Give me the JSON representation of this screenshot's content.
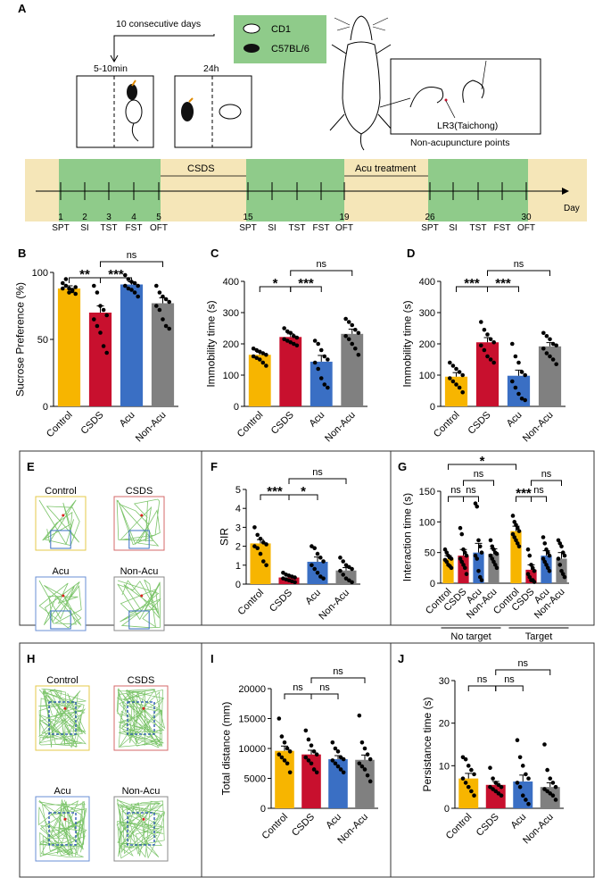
{
  "panel_letters": {
    "A": "A",
    "B": "B",
    "C": "C",
    "D": "D",
    "E": "E",
    "F": "F",
    "G": "G",
    "H": "H",
    "I": "I",
    "J": "J"
  },
  "colors": {
    "control": "#f7b500",
    "csds": "#c8102e",
    "acu": "#3a6fc4",
    "nonacu": "#808080",
    "green": "#8fcb8a",
    "beige": "#f5e6b8"
  },
  "schematic": {
    "days_label": "10 consecutive days",
    "time1": "5-10min",
    "time2": "24h",
    "legend_cd1": "CD1",
    "legend_c57": "C57BL/6",
    "acupoint_label": "LR3(Taichong)",
    "nonacu_label": "Non-acupuncture points"
  },
  "timeline": {
    "csds_label": "CSDS",
    "acu_label": "Acu treatment",
    "day_axis": "Day",
    "day_numbers": [
      "1",
      "2",
      "3",
      "4",
      "5",
      "15",
      "19",
      "26",
      "30"
    ],
    "tests": [
      "SPT",
      "SI",
      "TST",
      "FST",
      "OFT",
      "SPT",
      "SI",
      "TST",
      "FST",
      "OFT",
      "SPT",
      "SI",
      "TST",
      "FST",
      "OFT"
    ]
  },
  "maps_E": [
    "Control",
    "CSDS",
    "Acu",
    "Non-Acu"
  ],
  "maps_H": [
    "Control",
    "CSDS",
    "Acu",
    "Non-Acu"
  ],
  "chart_data": [
    {
      "id": "B",
      "type": "bar",
      "categories": [
        "Control",
        "CSDS",
        "Acu",
        "Non-Acu"
      ],
      "values": [
        88,
        70,
        91,
        77
      ],
      "errors": [
        2,
        5,
        2,
        4
      ],
      "ylabel": "Sucrose Preference (%)",
      "ylim": [
        0,
        100
      ],
      "yticks": [
        "0",
        "50",
        "100"
      ],
      "points": [
        [
          92,
          90,
          88,
          86,
          84,
          88,
          95,
          85,
          87,
          89
        ],
        [
          90,
          85,
          75,
          72,
          68,
          65,
          60,
          55,
          45,
          40
        ],
        [
          98,
          95,
          93,
          92,
          90,
          90,
          88,
          87,
          85,
          82
        ],
        [
          90,
          85,
          82,
          80,
          78,
          75,
          72,
          65,
          60,
          58
        ]
      ],
      "sig": [
        {
          "a": 0,
          "b": 1,
          "label": "**",
          "level": 1
        },
        {
          "a": 1,
          "b": 2,
          "label": "***",
          "level": 1
        },
        {
          "a": 1,
          "b": 3,
          "label": "ns",
          "level": 2
        }
      ]
    },
    {
      "id": "C",
      "type": "bar",
      "categories": [
        "Control",
        "CSDS",
        "Acu",
        "Non-Acu"
      ],
      "values": [
        165,
        222,
        143,
        232
      ],
      "errors": [
        8,
        10,
        20,
        15
      ],
      "ylabel": "Immobility time (s)",
      "ylim": [
        0,
        400
      ],
      "yticks": [
        "0",
        "100",
        "200",
        "300",
        "400"
      ],
      "points": [
        [
          185,
          180,
          175,
          170,
          165,
          160,
          155,
          150,
          140,
          130
        ],
        [
          250,
          240,
          235,
          225,
          220,
          215,
          210,
          205,
          200,
          195
        ],
        [
          210,
          200,
          180,
          160,
          150,
          140,
          120,
          90,
          70,
          60
        ],
        [
          280,
          270,
          260,
          245,
          235,
          225,
          215,
          200,
          185,
          165
        ]
      ],
      "sig": [
        {
          "a": 0,
          "b": 1,
          "label": "*",
          "level": 1
        },
        {
          "a": 1,
          "b": 2,
          "label": "***",
          "level": 1
        },
        {
          "a": 1,
          "b": 3,
          "label": "ns",
          "level": 2
        }
      ]
    },
    {
      "id": "D",
      "type": "bar",
      "categories": [
        "Control",
        "CSDS",
        "Acu",
        "Non-Acu"
      ],
      "values": [
        95,
        205,
        98,
        192
      ],
      "errors": [
        13,
        15,
        18,
        12
      ],
      "ylabel": "Immobility time (s)",
      "ylim": [
        0,
        400
      ],
      "yticks": [
        "0",
        "100",
        "200",
        "300",
        "400"
      ],
      "points": [
        [
          140,
          130,
          120,
          110,
          100,
          90,
          80,
          70,
          60,
          45
        ],
        [
          270,
          245,
          230,
          215,
          205,
          195,
          180,
          160,
          150,
          140
        ],
        [
          200,
          160,
          140,
          110,
          100,
          80,
          60,
          40,
          25,
          20
        ],
        [
          235,
          225,
          215,
          200,
          195,
          185,
          170,
          160,
          150,
          135
        ]
      ],
      "sig": [
        {
          "a": 0,
          "b": 1,
          "label": "***",
          "level": 1
        },
        {
          "a": 1,
          "b": 2,
          "label": "***",
          "level": 1
        },
        {
          "a": 1,
          "b": 3,
          "label": "ns",
          "level": 2
        }
      ]
    },
    {
      "id": "F",
      "type": "bar",
      "categories": [
        "Control",
        "CSDS",
        "Acu",
        "Non-Acu"
      ],
      "values": [
        2.15,
        0.35,
        1.18,
        0.72
      ],
      "errors": [
        0.2,
        0.08,
        0.25,
        0.15
      ],
      "ylabel": "SIR",
      "ylim": [
        0,
        5
      ],
      "yticks": [
        "0",
        "1",
        "2",
        "3",
        "4",
        "5"
      ],
      "points": [
        [
          3.0,
          2.6,
          2.4,
          2.2,
          2.1,
          2.0,
          1.9,
          1.6,
          1.2,
          1.0
        ],
        [
          0.6,
          0.5,
          0.45,
          0.4,
          0.35,
          0.3,
          0.25,
          0.2,
          0.15,
          0.1
        ],
        [
          2.0,
          1.9,
          1.6,
          1.4,
          1.2,
          1.0,
          0.8,
          0.6,
          0.4,
          0.3
        ],
        [
          1.4,
          1.2,
          1.0,
          0.9,
          0.8,
          0.7,
          0.5,
          0.3,
          0.2,
          0.1
        ]
      ],
      "sig": [
        {
          "a": 0,
          "b": 1,
          "label": "***",
          "level": 1
        },
        {
          "a": 1,
          "b": 2,
          "label": "*",
          "level": 1
        },
        {
          "a": 1,
          "b": 3,
          "label": "ns",
          "level": 2
        }
      ]
    },
    {
      "id": "G",
      "type": "bar",
      "categories": [
        "Control",
        "CSDS",
        "Acu",
        "Non-Acu",
        "Control",
        "CSDS",
        "Acu",
        "Non-Acu"
      ],
      "groups": [
        "No target",
        "Target"
      ],
      "values": [
        40,
        45,
        50,
        48,
        85,
        22,
        45,
        40
      ],
      "errors": [
        5,
        10,
        15,
        8,
        8,
        8,
        8,
        10
      ],
      "ylabel": "Interaction time (s)",
      "ylim": [
        0,
        150
      ],
      "yticks": [
        "0",
        "50",
        "100",
        "150"
      ],
      "points": [
        [
          55,
          50,
          45,
          42,
          40,
          38,
          35,
          30,
          28,
          25
        ],
        [
          90,
          80,
          55,
          50,
          45,
          40,
          35,
          30,
          25,
          15
        ],
        [
          130,
          125,
          70,
          60,
          50,
          45,
          40,
          20,
          10,
          5
        ],
        [
          70,
          60,
          55,
          50,
          48,
          45,
          40,
          35,
          30,
          25
        ],
        [
          110,
          100,
          95,
          90,
          85,
          80,
          75,
          70,
          65,
          60
        ],
        [
          55,
          45,
          30,
          25,
          20,
          15,
          10,
          5,
          5,
          2
        ],
        [
          75,
          65,
          55,
          50,
          45,
          40,
          35,
          30,
          25,
          20
        ],
        [
          70,
          65,
          60,
          50,
          45,
          40,
          30,
          20,
          15,
          10
        ]
      ],
      "sig": [
        {
          "a": 0,
          "b": 1,
          "label": "ns",
          "level": 1
        },
        {
          "a": 1,
          "b": 2,
          "label": "ns",
          "level": 1
        },
        {
          "a": 1,
          "b": 3,
          "label": "ns",
          "level": 2
        },
        {
          "a": 4,
          "b": 5,
          "label": "***",
          "level": 1
        },
        {
          "a": 5,
          "b": 6,
          "label": "ns",
          "level": 1
        },
        {
          "a": 5,
          "b": 7,
          "label": "ns",
          "level": 2
        },
        {
          "a": 0,
          "b": 4,
          "label": "*",
          "level": 3
        }
      ]
    },
    {
      "id": "I",
      "type": "bar",
      "categories": [
        "Control",
        "CSDS",
        "Acu",
        "Non-Acu"
      ],
      "values": [
        9600,
        9000,
        8200,
        8100
      ],
      "errors": [
        800,
        700,
        600,
        800
      ],
      "ylabel": "Total distance (mm)",
      "ylim": [
        0,
        20000
      ],
      "yticks": [
        "0",
        "5000",
        "10000",
        "15000",
        "20000"
      ],
      "points": [
        [
          15000,
          12000,
          11000,
          10000,
          9500,
          9000,
          8500,
          8000,
          7500,
          6000
        ],
        [
          13000,
          11500,
          10500,
          9500,
          9000,
          8500,
          8000,
          7500,
          6500,
          6000
        ],
        [
          11000,
          10000,
          9500,
          8500,
          8200,
          8000,
          7500,
          7000,
          6500,
          6000
        ],
        [
          15500,
          11000,
          10000,
          9000,
          8200,
          7500,
          7000,
          6500,
          5500,
          4500
        ]
      ],
      "sig": [
        {
          "a": 0,
          "b": 1,
          "label": "ns",
          "level": 1
        },
        {
          "a": 1,
          "b": 2,
          "label": "ns",
          "level": 1
        },
        {
          "a": 1,
          "b": 3,
          "label": "ns",
          "level": 2
        }
      ]
    },
    {
      "id": "J",
      "type": "bar",
      "categories": [
        "Control",
        "CSDS",
        "Acu",
        "Non-Acu"
      ],
      "values": [
        7.0,
        5.5,
        6.3,
        5.0
      ],
      "errors": [
        1.2,
        0.8,
        1.5,
        1.0
      ],
      "ylabel": "Persistance time (s)",
      "ylim": [
        0,
        30
      ],
      "yticks": [
        "0",
        "10",
        "20",
        "30"
      ],
      "points": [
        [
          12,
          11.5,
          10,
          9,
          8,
          7,
          6,
          5,
          4,
          3
        ],
        [
          9.5,
          7,
          6,
          5.5,
          5,
          5,
          4.5,
          4,
          3.5,
          3
        ],
        [
          16,
          12,
          10,
          8,
          7,
          6,
          5,
          3,
          2,
          1
        ],
        [
          15,
          9,
          7,
          6,
          5,
          4.5,
          4,
          3.5,
          3,
          2
        ]
      ],
      "sig": [
        {
          "a": 0,
          "b": 1,
          "label": "ns",
          "level": 1
        },
        {
          "a": 1,
          "b": 2,
          "label": "ns",
          "level": 1
        },
        {
          "a": 1,
          "b": 3,
          "label": "ns",
          "level": 2
        }
      ]
    }
  ]
}
